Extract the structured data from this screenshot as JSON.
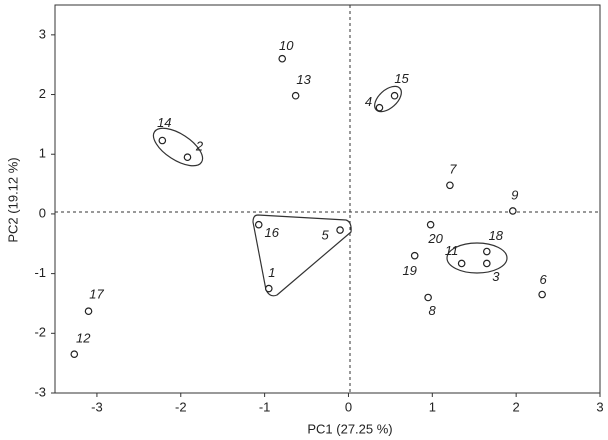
{
  "chart_data": {
    "type": "scatter",
    "x_label": "PC1 (27.25 %)",
    "y_label": "PC2 (19.12 %)",
    "x": [
      -0.95,
      -1.92,
      1.65,
      0.37,
      -0.1,
      2.31,
      1.21,
      0.95,
      1.96,
      -0.79,
      1.35,
      -3.27,
      -0.63,
      -2.22,
      0.55,
      -1.07,
      -3.1,
      1.65,
      0.79,
      0.98
    ],
    "series": [
      {
        "color": "#222",
        "values": [
          -1.25,
          0.95,
          -0.83,
          1.78,
          -0.27,
          -1.35,
          0.48,
          -1.4,
          0.05,
          2.6,
          -0.83,
          -2.35,
          1.98,
          1.23,
          1.98,
          -0.18,
          -1.63,
          -0.63,
          -0.7,
          -0.18
        ]
      }
    ],
    "point_labels": [
      "1",
      "2",
      "3",
      "4",
      "5",
      "6",
      "7",
      "8",
      "9",
      "10",
      "11",
      "12",
      "13",
      "14",
      "15",
      "16",
      "17",
      "18",
      "19",
      "20"
    ],
    "xlim": [
      -3.5,
      3
    ],
    "ylim": [
      -3,
      3.5
    ],
    "xticks": [
      -3,
      -2,
      -1,
      0,
      1,
      2,
      3
    ],
    "yticks": [
      -3,
      -2,
      -1,
      0,
      1,
      2,
      3
    ]
  }
}
